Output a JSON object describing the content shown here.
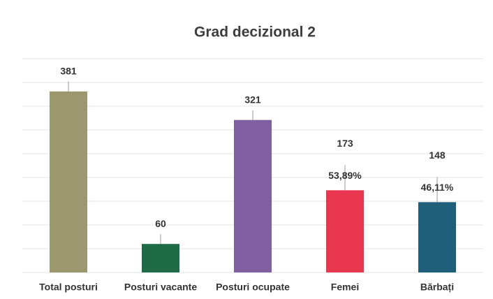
{
  "chart_data": {
    "type": "bar",
    "title": "Grad decizional 2",
    "categories": [
      "Total posturi",
      "Posturi vacante",
      "Posturi ocupate",
      "Femei",
      "Bărbați"
    ],
    "values": [
      381,
      60,
      321,
      173,
      148
    ],
    "colors": [
      "#9b9870",
      "#1e6b45",
      "#8060a0",
      "#e8374f",
      "#1f5f7a"
    ],
    "annotations": [
      {
        "x": "Femei",
        "text": "53,89%"
      },
      {
        "x": "Bărbați",
        "text": "46,11%"
      }
    ],
    "ylim": [
      0,
      450
    ],
    "yticks": [
      0,
      50,
      100,
      150,
      200,
      250,
      300,
      350,
      400,
      450
    ],
    "grid": true
  }
}
